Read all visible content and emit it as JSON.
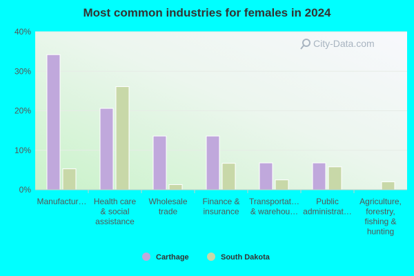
{
  "watermark": "City-Data.com",
  "chart_data": {
    "type": "bar",
    "title": "Most common industries for females in 2024",
    "xlabel": "",
    "ylabel": "",
    "ylim": [
      0,
      40
    ],
    "yticks": [
      "0%",
      "10%",
      "20%",
      "30%",
      "40%"
    ],
    "grid": true,
    "legend_position": "bottom",
    "categories": [
      [
        "Manufactur…"
      ],
      [
        "Health care",
        "& social",
        "assistance"
      ],
      [
        "Wholesale",
        "trade"
      ],
      [
        "Finance &",
        "insurance"
      ],
      [
        "Transportat…",
        "& warehou…"
      ],
      [
        "Public",
        "administrat…"
      ],
      [
        "Agriculture,",
        "forestry,",
        "fishing &",
        "hunting"
      ]
    ],
    "series": [
      {
        "name": "Carthage",
        "color": "#c0a8dc",
        "values": [
          34.2,
          20.6,
          13.6,
          13.6,
          6.8,
          6.8,
          0
        ]
      },
      {
        "name": "South Dakota",
        "color": "#c8d8a8",
        "values": [
          5.3,
          26.1,
          1.3,
          6.7,
          2.5,
          5.8,
          2.0
        ]
      }
    ]
  }
}
